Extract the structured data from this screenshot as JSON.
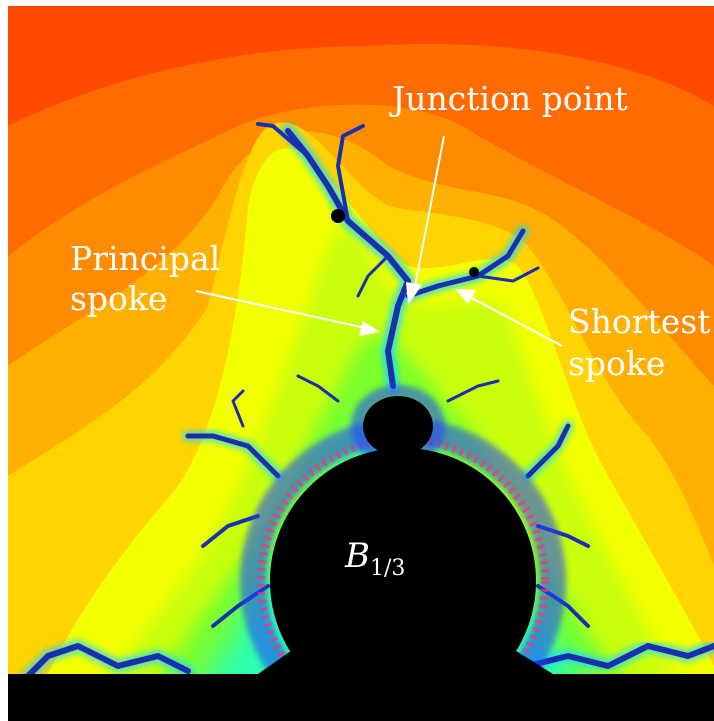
{
  "labels": {
    "junction_point": "Junction point",
    "principal_spoke_line1": "Principal",
    "principal_spoke_line2": "spoke",
    "shortest_spoke_line1": "Shortest",
    "shortest_spoke_line2": "spoke",
    "bulb_symbol": "B",
    "bulb_subscript": "1/3"
  },
  "colors": {
    "background_outer": "#ff4c00",
    "background_mid": "#ff9a00",
    "background_inner": "#fff200",
    "near_set": "#7dff2a",
    "filament": "#1a2fae",
    "set_interior": "#000000",
    "text": "#ffffff"
  }
}
